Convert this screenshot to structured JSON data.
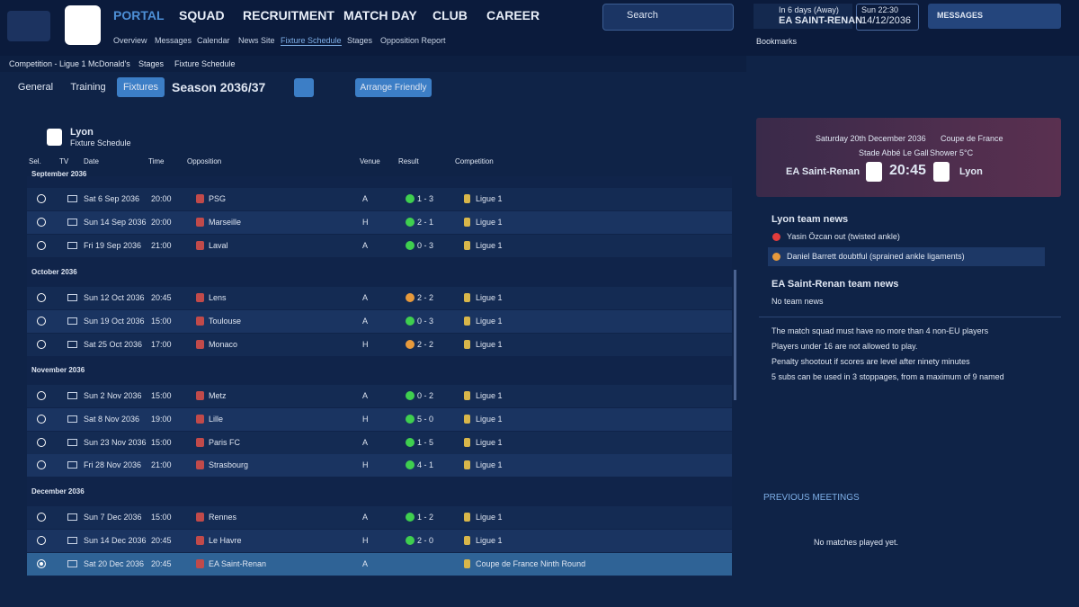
{
  "nav": {
    "menu": [
      "PORTAL",
      "SQUAD",
      "RECRUITMENT",
      "MATCH DAY",
      "CLUB",
      "CAREER"
    ],
    "submenu": [
      "Overview",
      "Messages",
      "Calendar",
      "News Site",
      "Fixture Schedule",
      "Stages",
      "Opposition Report"
    ]
  },
  "search": "Search",
  "next_match": {
    "when": "In 6 days (Away)",
    "team": "EA SAINT-RENAN"
  },
  "clock": {
    "time": "Sun 22:30",
    "date": "14/12/2036"
  },
  "messages": "MESSAGES",
  "bookmarks": "Bookmarks",
  "breadcrumb": [
    "Competition - Ligue 1 McDonald's",
    "Stages",
    "Fixture Schedule"
  ],
  "tabs": [
    "General",
    "Training",
    "Fixtures"
  ],
  "season": "Season 2036/37",
  "arrange": "Arrange Friendly",
  "schedule": {
    "team": "Lyon",
    "subtitle": "Fixture Schedule",
    "columns": [
      "Sel.",
      "TV",
      "Date",
      "Time",
      "Opposition",
      "Venue",
      "Result",
      "Competition"
    ],
    "months": [
      {
        "name": "September 2036",
        "rows": [
          [
            "Sat 6 Sep 2036",
            "20:00",
            "PSG",
            "A",
            "1 - 3",
            "Ligue 1"
          ],
          [
            "Sun 14 Sep 2036",
            "20:00",
            "Marseille",
            "H",
            "2 - 1",
            "Ligue 1"
          ],
          [
            "Fri 19 Sep 2036",
            "21:00",
            "Laval",
            "A",
            "0 - 3",
            "Ligue 1"
          ]
        ]
      },
      {
        "name": "October 2036",
        "rows": [
          [
            "Sun 12 Oct 2036",
            "20:45",
            "Lens",
            "A",
            "2 - 2",
            "Ligue 1"
          ],
          [
            "Sun 19 Oct 2036",
            "15:00",
            "Toulouse",
            "A",
            "0 - 3",
            "Ligue 1"
          ],
          [
            "Sat 25 Oct 2036",
            "17:00",
            "Monaco",
            "H",
            "2 - 2",
            "Ligue 1"
          ]
        ]
      },
      {
        "name": "November 2036",
        "rows": [
          [
            "Sun 2 Nov 2036",
            "15:00",
            "Metz",
            "A",
            "0 - 2",
            "Ligue 1"
          ],
          [
            "Sat 8 Nov 2036",
            "19:00",
            "Lille",
            "H",
            "5 - 0",
            "Ligue 1"
          ],
          [
            "Sun 23 Nov 2036",
            "15:00",
            "Paris FC",
            "A",
            "1 - 5",
            "Ligue 1"
          ],
          [
            "Fri 28 Nov 2036",
            "21:00",
            "Strasbourg",
            "H",
            "4 - 1",
            "Ligue 1"
          ]
        ]
      },
      {
        "name": "December 2036",
        "rows": [
          [
            "Sun 7 Dec 2036",
            "15:00",
            "Rennes",
            "A",
            "1 - 2",
            "Ligue 1"
          ],
          [
            "Sun 14 Dec 2036",
            "20:45",
            "Le Havre",
            "H",
            "2 - 0",
            "Ligue 1"
          ],
          [
            "Sat 20 Dec 2036",
            "20:45",
            "EA Saint-Renan",
            "A",
            null,
            "Coupe de France Ninth Round"
          ]
        ]
      }
    ]
  },
  "match_card": {
    "date": "Saturday 20th December 2036",
    "competition": "Coupe de France",
    "stadium": "Stade Abbé Le Gall",
    "weather": "Shower 5°C",
    "home": "EA Saint-Renan",
    "time": "20:45",
    "away": "Lyon"
  },
  "team_news": [
    {
      "title": "Lyon team news",
      "items": [
        "Yasin Özcan out (twisted ankle)",
        "Daniel Barrett doubtful (sprained ankle ligaments)"
      ]
    },
    {
      "title": "EA Saint-Renan team news",
      "items": [
        "No team news"
      ]
    }
  ],
  "rules": [
    "The match squad must have no more than 4 non-EU players",
    "Players under 16 are not allowed to play.",
    "Penalty shootout if scores are level after ninety minutes",
    "5 subs can be used in 3 stoppages, from a maximum of 9 named"
  ],
  "previous_meetings": {
    "title": "PREVIOUS MEETINGS",
    "text": "No matches played yet."
  }
}
